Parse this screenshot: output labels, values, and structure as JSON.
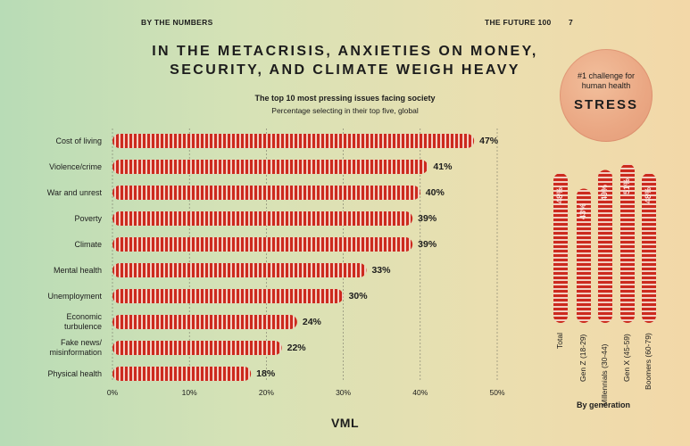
{
  "header": {
    "left": "BY THE NUMBERS",
    "right": "THE FUTURE 100",
    "page_number": "7"
  },
  "title": "IN THE METACRISIS, ANXIETIES ON MONEY,\nSECURITY, AND CLIMATE WEIGH HEAVY",
  "badge": {
    "text": "#1 challenge for\nhuman health",
    "word": "STRESS"
  },
  "logo": "VML",
  "colors": {
    "bar": "#cc2a1e",
    "bar_light": "#f2cfc2",
    "grid": "#7a7a6a"
  },
  "chart_data": [
    {
      "type": "bar",
      "orientation": "horizontal",
      "title": "The top 10 most pressing issues facing society",
      "subtitle": "Percentage selecting in their top five, global",
      "categories": [
        "Cost of living",
        "Violence/crime",
        "War and unrest",
        "Poverty",
        "Climate",
        "Mental health",
        "Unemployment",
        "Economic\nturbulence",
        "Fake news/\nmisinformation",
        "Physical health"
      ],
      "values": [
        47,
        41,
        40,
        39,
        39,
        33,
        30,
        24,
        22,
        18
      ],
      "value_labels": [
        "47%",
        "41%",
        "40%",
        "39%",
        "39%",
        "33%",
        "30%",
        "24%",
        "22%",
        "18%"
      ],
      "xlim": [
        0,
        50
      ],
      "ticks": [
        0,
        10,
        20,
        30,
        40,
        50
      ],
      "tick_labels": [
        "0%",
        "10%",
        "20%",
        "30%",
        "40%",
        "50%"
      ],
      "grid": true
    },
    {
      "type": "bar",
      "orientation": "vertical",
      "xlabel": "By generation",
      "categories": [
        "Total",
        "Gen Z (18-29)",
        "Millennials (30-44)",
        "Gen X (45-59)",
        "Boomers (60-79)"
      ],
      "values": [
        48,
        43,
        49,
        51,
        48
      ],
      "value_labels": [
        "48%",
        "43%",
        "49%",
        "51%",
        "48%"
      ]
    }
  ]
}
